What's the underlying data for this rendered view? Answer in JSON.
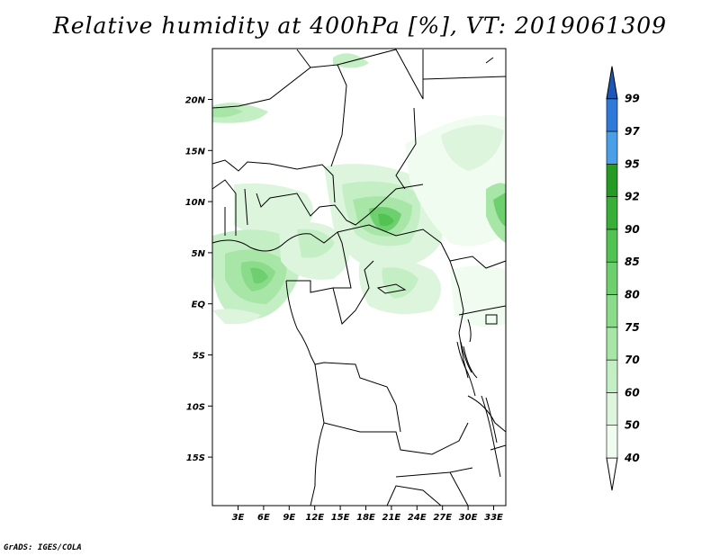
{
  "title": "Relative humidity at 400hPa [%], VT: 2019061309",
  "credit": "GrADS: IGES/COLA",
  "map": {
    "lon_labels": [
      "3E",
      "6E",
      "9E",
      "12E",
      "15E",
      "18E",
      "21E",
      "24E",
      "27E",
      "30E",
      "33E"
    ],
    "lat_labels": [
      "20N",
      "15N",
      "10N",
      "5N",
      "EQ",
      "5S",
      "10S",
      "15S"
    ]
  },
  "colorbar": {
    "levels": [
      "40",
      "50",
      "60",
      "70",
      "75",
      "80",
      "85",
      "90",
      "92",
      "95",
      "97",
      "99"
    ],
    "colors": {
      "40-50": "#f0fcf0",
      "50-60": "#dcf5dc",
      "60-70": "#c4efc4",
      "70-75": "#a8e6a8",
      "75-80": "#8adb8a",
      "80-85": "#6ecf6e",
      "85-90": "#52c352",
      "90-92": "#38b038",
      "92-95": "#259a25",
      "95-97": "#4b9fe8",
      "97-99": "#2f7ad8",
      "99+": "#1b56b8"
    }
  }
}
